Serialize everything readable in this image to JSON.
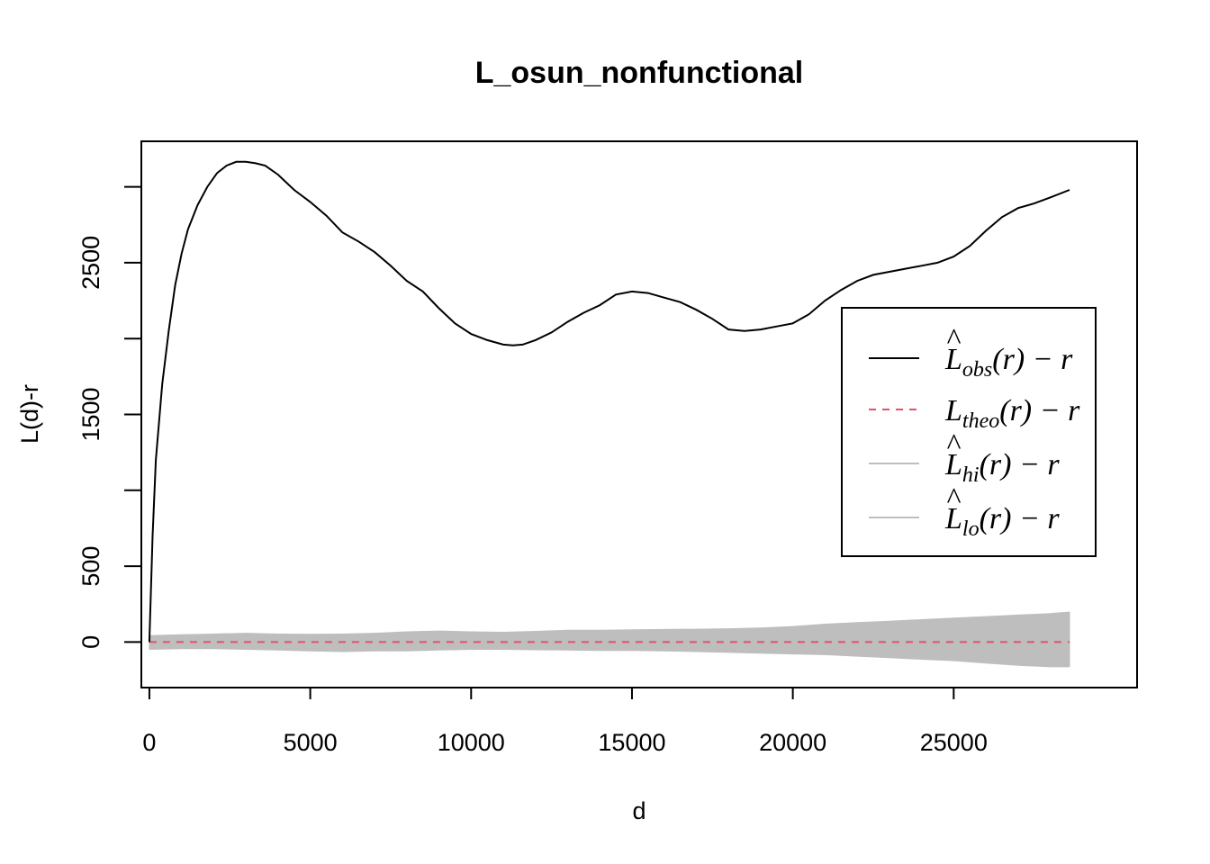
{
  "chart_data": {
    "type": "line",
    "title": "L_osun_nonfunctional",
    "xlabel": "d",
    "ylabel": "L(d)-r",
    "xlim": [
      -250,
      30700
    ],
    "ylim": [
      -300,
      3300
    ],
    "x_ticks": [
      0,
      5000,
      10000,
      15000,
      20000,
      25000
    ],
    "x_tick_labels": [
      "0",
      "5000",
      "10000",
      "15000",
      "20000",
      "25000"
    ],
    "y_ticks": [
      0,
      500,
      1000,
      1500,
      2000,
      2500,
      3000
    ],
    "y_tick_labels": [
      "0",
      "500",
      "",
      "1500",
      "",
      "2500",
      ""
    ],
    "grid": false,
    "legend_position": "right",
    "series": [
      {
        "name": "obs",
        "legend_label": "L̂obs(r) − r",
        "color": "#000000",
        "style": "solid",
        "x": [
          0,
          100,
          200,
          400,
          600,
          800,
          1000,
          1200,
          1500,
          1800,
          2100,
          2400,
          2700,
          3000,
          3300,
          3600,
          4000,
          4500,
          5000,
          5500,
          6000,
          6500,
          7000,
          7500,
          8000,
          8500,
          9000,
          9500,
          10000,
          10500,
          11000,
          11300,
          11600,
          12000,
          12500,
          13000,
          13500,
          14000,
          14500,
          15000,
          15500,
          16000,
          16500,
          17000,
          17500,
          18000,
          18500,
          19000,
          19500,
          20000,
          20500,
          21000,
          21500,
          22000,
          22500,
          23000,
          23500,
          24000,
          24500,
          25000,
          25500,
          26000,
          26500,
          27000,
          27500,
          28000,
          28600
        ],
        "y": [
          0,
          700,
          1200,
          1700,
          2050,
          2350,
          2560,
          2720,
          2880,
          3000,
          3090,
          3140,
          3165,
          3165,
          3155,
          3140,
          3080,
          2980,
          2900,
          2810,
          2700,
          2640,
          2570,
          2480,
          2380,
          2310,
          2200,
          2100,
          2030,
          1990,
          1960,
          1955,
          1960,
          1990,
          2040,
          2110,
          2170,
          2220,
          2290,
          2310,
          2300,
          2270,
          2240,
          2190,
          2130,
          2060,
          2050,
          2060,
          2080,
          2100,
          2160,
          2250,
          2320,
          2380,
          2420,
          2440,
          2460,
          2480,
          2500,
          2540,
          2610,
          2710,
          2800,
          2860,
          2890,
          2930,
          2980
        ]
      },
      {
        "name": "theo",
        "legend_label": "Ltheo(r) − r",
        "color": "#DF536B",
        "style": "dashed",
        "x": [
          0,
          28600
        ],
        "y": [
          0,
          0
        ]
      },
      {
        "name": "hi",
        "legend_label": "L̂hi(r) − r",
        "color": "#BEBEBE",
        "style": "solid",
        "x": [
          0,
          1000,
          2000,
          3000,
          4000,
          5000,
          6000,
          7000,
          8000,
          9000,
          10000,
          11000,
          12000,
          13000,
          14000,
          15000,
          16000,
          17000,
          18000,
          19000,
          20000,
          21000,
          22000,
          23000,
          24000,
          25000,
          26000,
          27000,
          28000,
          28600
        ],
        "y": [
          40,
          45,
          50,
          55,
          50,
          48,
          50,
          55,
          65,
          70,
          65,
          62,
          68,
          75,
          75,
          78,
          80,
          82,
          85,
          90,
          100,
          115,
          125,
          135,
          145,
          155,
          165,
          175,
          185,
          195
        ]
      },
      {
        "name": "lo",
        "legend_label": "L̂lo(r) − r",
        "color": "#BEBEBE",
        "style": "solid",
        "x": [
          0,
          1000,
          2000,
          3000,
          4000,
          5000,
          6000,
          7000,
          8000,
          9000,
          10000,
          11000,
          12000,
          13000,
          14000,
          15000,
          16000,
          17000,
          18000,
          19000,
          20000,
          21000,
          22000,
          23000,
          24000,
          25000,
          26000,
          27000,
          28000,
          28600
        ],
        "y": [
          -45,
          -40,
          -40,
          -45,
          -50,
          -55,
          -60,
          -55,
          -55,
          -50,
          -45,
          -45,
          -48,
          -50,
          -52,
          -52,
          -55,
          -60,
          -65,
          -70,
          -75,
          -80,
          -90,
          -100,
          -110,
          -120,
          -135,
          -150,
          -160,
          -160
        ]
      }
    ]
  }
}
